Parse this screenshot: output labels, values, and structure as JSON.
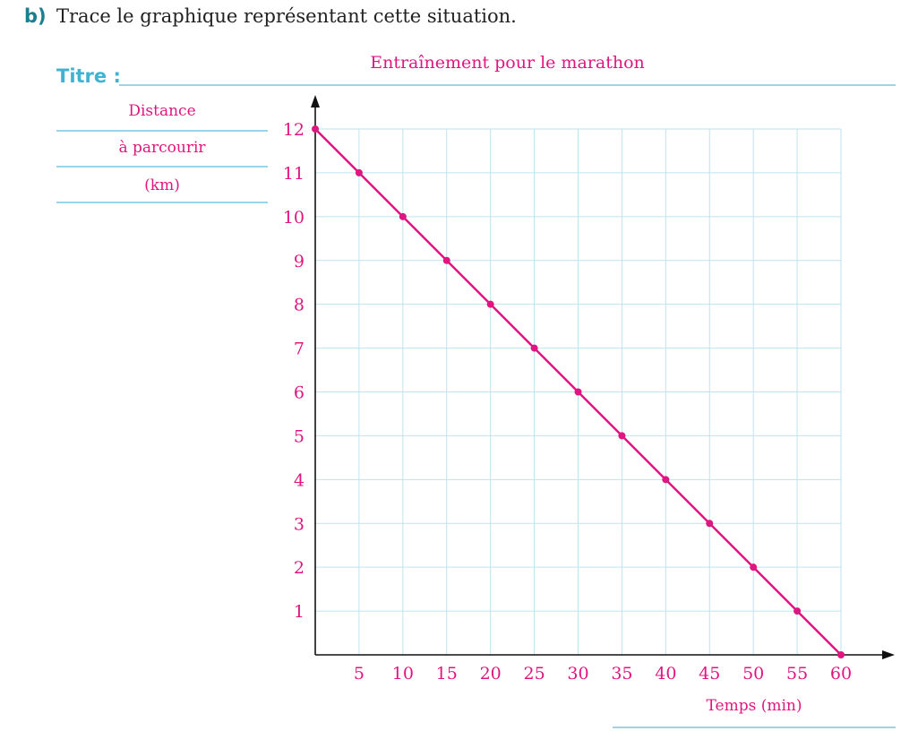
{
  "question": {
    "label": "b)",
    "text": "Trace le graphique représentant cette situation."
  },
  "title_field": {
    "label": "Titre :",
    "value": "Entraînement pour le marathon"
  },
  "y_axis_label": {
    "line1": "Distance",
    "line2": "à parcourir",
    "line3": "(km)"
  },
  "x_axis_label": "Temps (min)",
  "colors": {
    "accent": "#e0157f",
    "grid": "#bfe3f0",
    "axis": "#111111",
    "question": "#1a7f8e",
    "title_label": "#40b3d3"
  },
  "chart_data": {
    "type": "line",
    "title": "Entraînement pour le marathon",
    "xlabel": "Temps (min)",
    "ylabel": "Distance à parcourir (km)",
    "xlim": [
      0,
      60
    ],
    "ylim": [
      0,
      12
    ],
    "x_ticks": [
      5,
      10,
      15,
      20,
      25,
      30,
      35,
      40,
      45,
      50,
      55,
      60
    ],
    "y_ticks": [
      1,
      2,
      3,
      4,
      5,
      6,
      7,
      8,
      9,
      10,
      11,
      12
    ],
    "grid": true,
    "series": [
      {
        "x": [
          0,
          5,
          10,
          15,
          20,
          25,
          30,
          35,
          40,
          45,
          50,
          55,
          60
        ],
        "y": [
          12,
          11,
          10,
          9,
          8,
          7,
          6,
          5,
          4,
          3,
          2,
          1,
          0
        ]
      }
    ]
  }
}
